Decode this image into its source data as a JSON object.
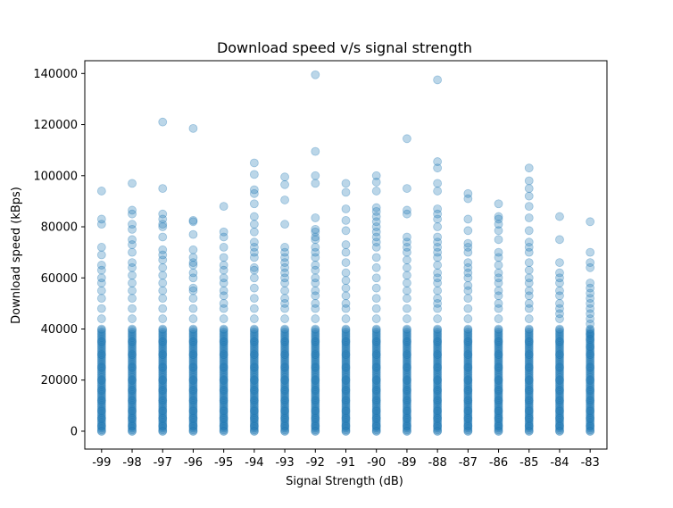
{
  "chart_data": {
    "type": "scatter",
    "title": "Download speed v/s signal strength",
    "xlabel": "Signal Strength (dB)",
    "ylabel": "Download speed (kBps)",
    "categories": [
      "-99",
      "-98",
      "-97",
      "-96",
      "-95",
      "-94",
      "-93",
      "-92",
      "-91",
      "-90",
      "-89",
      "-88",
      "-87",
      "-86",
      "-85",
      "-84",
      "-83"
    ],
    "ylim": [
      -7000,
      145000
    ],
    "yticks": [
      0,
      20000,
      40000,
      60000,
      80000,
      100000,
      120000,
      140000
    ],
    "grid": false,
    "legend": "none",
    "point_color": "#1f77b4",
    "point_alpha": 0.3,
    "series": [
      {
        "values": {
          "-99": [
            0,
            2000,
            5000,
            8000,
            12000,
            16000,
            20000,
            25000,
            30000,
            35000,
            40000,
            44000,
            48000,
            52000,
            55000,
            58000,
            60000,
            63000,
            65000,
            69000,
            72000,
            81000,
            83000,
            94000
          ],
          "-98": [
            0,
            2000,
            5000,
            8000,
            12000,
            16000,
            20000,
            25000,
            30000,
            35000,
            40000,
            44000,
            48000,
            52000,
            55000,
            58000,
            61000,
            64000,
            66000,
            70000,
            73000,
            75000,
            79000,
            81000,
            85000,
            86500,
            97000
          ],
          "-97": [
            0,
            2000,
            5000,
            8000,
            12000,
            16000,
            20000,
            25000,
            30000,
            35000,
            40000,
            44000,
            48000,
            52000,
            55000,
            58000,
            61000,
            64000,
            67000,
            69000,
            71000,
            76000,
            80000,
            81000,
            83000,
            85000,
            95000,
            121000
          ],
          "-96": [
            0,
            2000,
            5000,
            8000,
            12000,
            16000,
            20000,
            25000,
            30000,
            35000,
            40000,
            44000,
            48000,
            52000,
            55000,
            56000,
            60000,
            62000,
            65000,
            66000,
            68000,
            71000,
            77000,
            82000,
            82500,
            118500
          ],
          "-95": [
            0,
            2000,
            5000,
            8000,
            12000,
            16000,
            20000,
            25000,
            30000,
            35000,
            40000,
            44000,
            48000,
            50000,
            53000,
            55000,
            58000,
            60000,
            63000,
            65000,
            68000,
            72000,
            76000,
            78000,
            88000
          ],
          "-94": [
            0,
            2000,
            5000,
            8000,
            12000,
            16000,
            20000,
            25000,
            30000,
            35000,
            40000,
            44000,
            48000,
            52000,
            56000,
            60000,
            63000,
            64000,
            68000,
            70000,
            72000,
            74000,
            78000,
            81000,
            84000,
            89000,
            93000,
            94500,
            100500,
            105000
          ],
          "-93": [
            0,
            2000,
            5000,
            8000,
            12000,
            16000,
            20000,
            25000,
            30000,
            35000,
            40000,
            44000,
            48000,
            50000,
            52000,
            55000,
            58000,
            60000,
            62000,
            64000,
            66000,
            68000,
            70000,
            72000,
            81000,
            90500,
            96500,
            99500
          ],
          "-92": [
            0,
            2000,
            5000,
            8000,
            12000,
            16000,
            20000,
            25000,
            30000,
            35000,
            40000,
            44000,
            48000,
            50000,
            53000,
            55000,
            58000,
            60000,
            63000,
            65000,
            68000,
            70000,
            72000,
            75000,
            76000,
            78000,
            79000,
            83500,
            97000,
            100000,
            109500,
            139500
          ],
          "-91": [
            0,
            2000,
            5000,
            8000,
            12000,
            16000,
            20000,
            25000,
            30000,
            35000,
            40000,
            44000,
            48000,
            50000,
            53000,
            56000,
            59000,
            62000,
            66000,
            70000,
            73000,
            78500,
            82500,
            87000,
            93500,
            97000
          ],
          "-90": [
            0,
            2000,
            5000,
            8000,
            12000,
            16000,
            20000,
            25000,
            30000,
            35000,
            40000,
            44000,
            48000,
            52000,
            56000,
            60000,
            64000,
            68000,
            72000,
            74000,
            76000,
            78000,
            80000,
            82000,
            84000,
            86000,
            87500,
            94000,
            97500,
            100000
          ],
          "-89": [
            0,
            2000,
            5000,
            8000,
            12000,
            16000,
            20000,
            25000,
            30000,
            35000,
            40000,
            44000,
            48000,
            52000,
            55000,
            58000,
            61000,
            64000,
            67000,
            70000,
            72000,
            74000,
            76000,
            85000,
            86500,
            95000,
            114500
          ],
          "-88": [
            0,
            2000,
            5000,
            8000,
            12000,
            16000,
            20000,
            25000,
            30000,
            35000,
            40000,
            44000,
            48000,
            50000,
            52000,
            55000,
            58000,
            60000,
            62000,
            65000,
            68000,
            70000,
            72000,
            74000,
            76000,
            80000,
            83000,
            85000,
            87000,
            94000,
            97000,
            103000,
            105500,
            137500
          ],
          "-87": [
            0,
            2000,
            5000,
            8000,
            12000,
            16000,
            20000,
            25000,
            30000,
            35000,
            40000,
            44000,
            48000,
            52000,
            55000,
            57000,
            60000,
            62000,
            64000,
            66000,
            70000,
            72000,
            73500,
            78500,
            83000,
            91000,
            93000
          ],
          "-86": [
            0,
            2000,
            5000,
            8000,
            12000,
            16000,
            20000,
            25000,
            30000,
            35000,
            40000,
            44000,
            48000,
            50000,
            53000,
            55000,
            58000,
            60000,
            62000,
            65000,
            68000,
            70000,
            75000,
            78500,
            81000,
            83000,
            84000,
            89000
          ],
          "-85": [
            0,
            2000,
            5000,
            8000,
            12000,
            16000,
            20000,
            25000,
            30000,
            35000,
            40000,
            44000,
            48000,
            50000,
            53000,
            55000,
            58000,
            60000,
            63000,
            66000,
            70000,
            72000,
            74000,
            78500,
            83500,
            88000,
            92000,
            95000,
            98000,
            103000
          ],
          "-84": [
            0,
            2000,
            5000,
            8000,
            12000,
            16000,
            20000,
            25000,
            30000,
            35000,
            40000,
            44000,
            46000,
            48000,
            50000,
            53000,
            55000,
            58000,
            60000,
            62000,
            66000,
            75000,
            84000
          ],
          "-83": [
            0,
            2000,
            5000,
            8000,
            12000,
            16000,
            20000,
            25000,
            30000,
            33000,
            36000,
            38000,
            40000,
            42000,
            44000,
            46000,
            48000,
            50000,
            52000,
            54000,
            56000,
            58000,
            64000,
            66000,
            70000,
            82000
          ]
        }
      }
    ]
  }
}
